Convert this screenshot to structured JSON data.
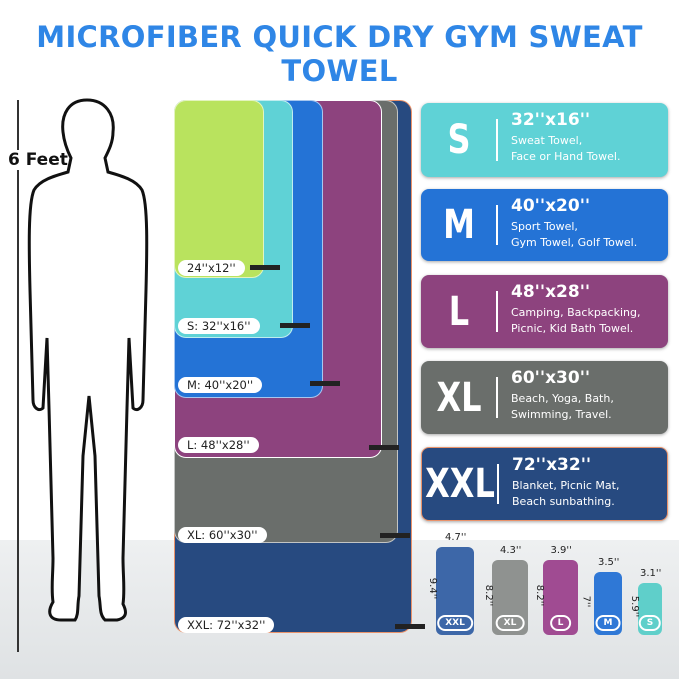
{
  "title": "MICROFIBER QUICK DRY GYM SWEAT TOWEL",
  "height_label": "6 Feet",
  "towels": [
    {
      "label": "24''x12''",
      "color": "#b9e35e"
    },
    {
      "label": "S: 32''x16''",
      "color": "#5fd2d6"
    },
    {
      "label": "M: 40''x20''",
      "color": "#2473d6"
    },
    {
      "label": "L: 48''x28''",
      "color": "#8d437e"
    },
    {
      "label": "XL: 60''x30''",
      "color": "#6a6e6b"
    },
    {
      "label": "XXL: 72''x32''",
      "color": "#274a80"
    }
  ],
  "cards": [
    {
      "size": "S",
      "dims": "32''x16''",
      "use1": "Sweat Towel,",
      "use2": "Face or Hand Towel.",
      "color": "#5fd2d6"
    },
    {
      "size": "M",
      "dims": "40''x20''",
      "use1": "Sport Towel,",
      "use2": "Gym Towel, Golf Towel.",
      "color": "#2473d6"
    },
    {
      "size": "L",
      "dims": "48''x28''",
      "use1": "Camping, Backpacking,",
      "use2": "Picnic, Kid Bath Towel.",
      "color": "#8d437e"
    },
    {
      "size": "XL",
      "dims": "60''x30''",
      "use1": "Beach, Yoga, Bath,",
      "use2": "Swimming, Travel.",
      "color": "#6a6e6b"
    },
    {
      "size": "XXL",
      "dims": "72''x32''",
      "use1": "Blanket, Picnic Mat,",
      "use2": "Beach sunbathing.",
      "color": "#274a80"
    }
  ],
  "rolls": [
    {
      "badge": "XXL",
      "width": "4.7''",
      "height": "9.4''",
      "color": "#3d67a8"
    },
    {
      "badge": "XL",
      "width": "4.3''",
      "height": "8.2''",
      "color": "#8f9290"
    },
    {
      "badge": "L",
      "width": "3.9''",
      "height": "8.2''",
      "color": "#a04b92"
    },
    {
      "badge": "M",
      "width": "3.5''",
      "height": "7''",
      "color": "#2f78d6"
    },
    {
      "badge": "S",
      "width": "3.1''",
      "height": "5.9''",
      "color": "#5fcfca"
    }
  ]
}
